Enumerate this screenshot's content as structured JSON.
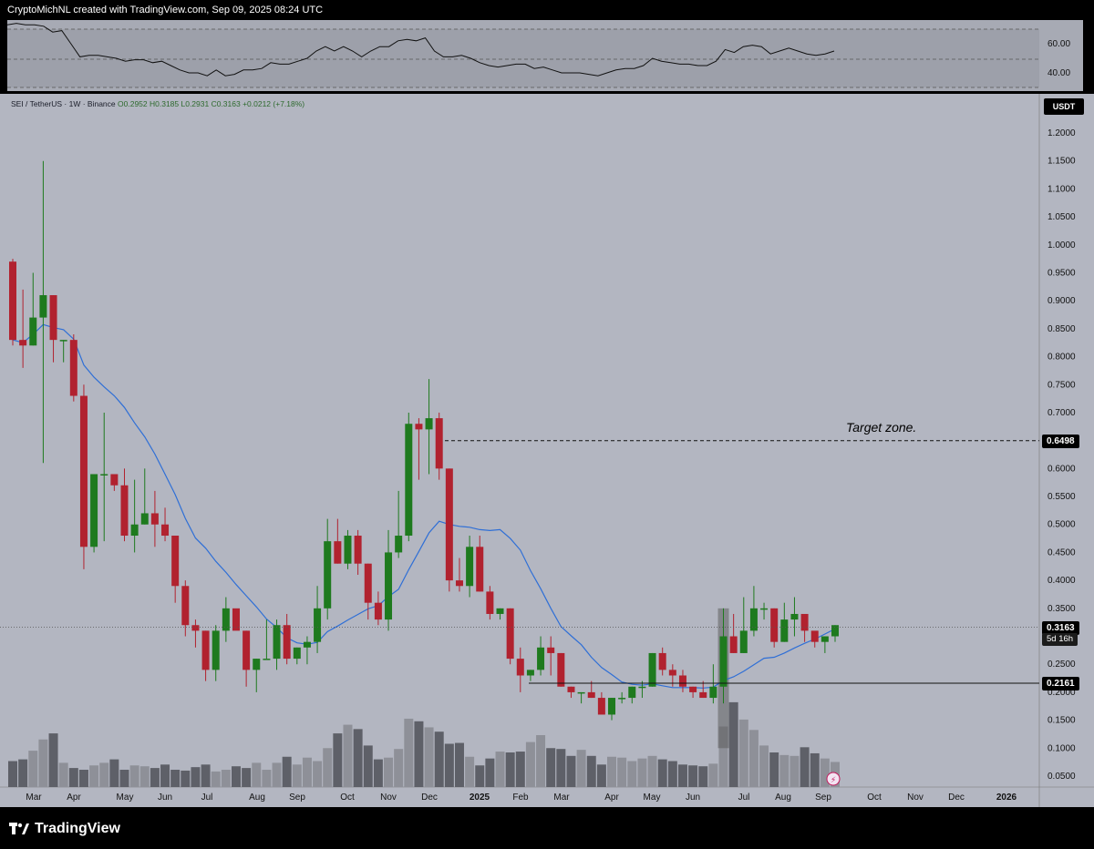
{
  "header": {
    "attribution": "CryptoMichNL created with TradingView.com, Sep 09, 2025 08:24 UTC"
  },
  "legend": {
    "symbol": "SEI / TetherUS · 1W · Binance",
    "ohlc": "O0.2952 H0.3185 L0.2931 C0.3163 +0.0212 (+7.18%)"
  },
  "currency_button": "USDT",
  "annotation": "Target zone.",
  "price_tags": {
    "target": "0.6498",
    "current": "0.3163",
    "support": "0.2161",
    "countdown": "5d 16h"
  },
  "footer": {
    "brand": "TradingView"
  },
  "colors": {
    "background": "#b3b6c1",
    "bull": "#1e7a1e",
    "bear": "#b1222f",
    "ma": "#2f6fd6",
    "rsi_band": "#9b9ea7"
  },
  "chart_data": {
    "type": "candlestick",
    "timeframe": "1W",
    "price_axis": {
      "ticks": [
        "1.2000",
        "1.1500",
        "1.1000",
        "1.0500",
        "1.0000",
        "0.9500",
        "0.9000",
        "0.8500",
        "0.8000",
        "0.7500",
        "0.7000",
        "0.6500",
        "0.6000",
        "0.5500",
        "0.5000",
        "0.4500",
        "0.4000",
        "0.3500",
        "0.3000",
        "0.2500",
        "0.2000",
        "0.1500",
        "0.1000",
        "0.0500"
      ],
      "range": [
        0.03,
        1.22
      ]
    },
    "time_axis": {
      "labels": [
        "Mar",
        "Apr",
        "May",
        "Jun",
        "Jul",
        "Aug",
        "Sep",
        "Oct",
        "Nov",
        "Dec",
        "2025",
        "Feb",
        "Mar",
        "Apr",
        "May",
        "Jun",
        "Jul",
        "Aug",
        "Sep",
        "Oct",
        "Nov",
        "Dec",
        "2026"
      ]
    },
    "rsi": {
      "ticks": [
        "60.00",
        "40.00"
      ],
      "values": [
        73,
        74,
        73,
        73,
        72,
        68,
        69,
        60,
        51,
        52,
        52,
        51,
        50,
        48,
        49,
        49,
        47,
        48,
        45,
        42,
        40,
        40,
        38,
        42,
        38,
        39,
        42,
        42,
        43,
        47,
        46,
        46,
        48,
        50,
        55,
        58,
        55,
        58,
        55,
        51,
        55,
        58,
        58,
        62,
        63,
        62,
        64,
        55,
        51,
        51,
        52,
        50,
        47,
        45,
        44,
        45,
        46,
        46,
        43,
        44,
        42,
        40,
        40,
        40,
        39,
        38,
        40,
        42,
        43,
        43,
        45,
        50,
        48,
        47,
        46,
        46,
        45,
        45,
        48,
        56,
        54,
        58,
        59,
        58,
        53,
        55,
        57,
        55,
        53,
        52,
        53,
        55
      ]
    },
    "candles_ohlc": [
      [
        0.97,
        0.975,
        0.82,
        0.83
      ],
      [
        0.83,
        0.92,
        0.78,
        0.82
      ],
      [
        0.82,
        0.95,
        0.82,
        0.87
      ],
      [
        0.87,
        1.15,
        0.61,
        0.91
      ],
      [
        0.91,
        0.91,
        0.79,
        0.83
      ],
      [
        0.83,
        0.83,
        0.79,
        0.83
      ],
      [
        0.83,
        0.84,
        0.72,
        0.73
      ],
      [
        0.73,
        0.75,
        0.42,
        0.46
      ],
      [
        0.46,
        0.58,
        0.45,
        0.59
      ],
      [
        0.59,
        0.7,
        0.47,
        0.59
      ],
      [
        0.59,
        0.59,
        0.56,
        0.57
      ],
      [
        0.57,
        0.6,
        0.47,
        0.48
      ],
      [
        0.48,
        0.58,
        0.45,
        0.5
      ],
      [
        0.5,
        0.6,
        0.5,
        0.52
      ],
      [
        0.52,
        0.56,
        0.46,
        0.5
      ],
      [
        0.5,
        0.53,
        0.47,
        0.48
      ],
      [
        0.48,
        0.48,
        0.36,
        0.39
      ],
      [
        0.39,
        0.4,
        0.3,
        0.32
      ],
      [
        0.32,
        0.33,
        0.28,
        0.31
      ],
      [
        0.31,
        0.31,
        0.22,
        0.24
      ],
      [
        0.24,
        0.32,
        0.22,
        0.31
      ],
      [
        0.31,
        0.37,
        0.29,
        0.35
      ],
      [
        0.35,
        0.33,
        0.32,
        0.31
      ],
      [
        0.31,
        0.31,
        0.21,
        0.24
      ],
      [
        0.24,
        0.26,
        0.2,
        0.26
      ],
      [
        0.26,
        0.33,
        0.26,
        0.26
      ],
      [
        0.26,
        0.33,
        0.24,
        0.32
      ],
      [
        0.32,
        0.34,
        0.25,
        0.26
      ],
      [
        0.26,
        0.28,
        0.25,
        0.28
      ],
      [
        0.28,
        0.3,
        0.25,
        0.29
      ],
      [
        0.29,
        0.39,
        0.27,
        0.35
      ],
      [
        0.35,
        0.51,
        0.33,
        0.47
      ],
      [
        0.47,
        0.51,
        0.43,
        0.43
      ],
      [
        0.43,
        0.49,
        0.42,
        0.48
      ],
      [
        0.48,
        0.49,
        0.41,
        0.43
      ],
      [
        0.43,
        0.43,
        0.33,
        0.36
      ],
      [
        0.36,
        0.38,
        0.32,
        0.33
      ],
      [
        0.33,
        0.49,
        0.31,
        0.45
      ],
      [
        0.45,
        0.56,
        0.44,
        0.48
      ],
      [
        0.48,
        0.7,
        0.47,
        0.68
      ],
      [
        0.68,
        0.69,
        0.58,
        0.67
      ],
      [
        0.67,
        0.76,
        0.59,
        0.69
      ],
      [
        0.69,
        0.7,
        0.58,
        0.6
      ],
      [
        0.6,
        0.6,
        0.38,
        0.4
      ],
      [
        0.4,
        0.44,
        0.38,
        0.39
      ],
      [
        0.39,
        0.48,
        0.37,
        0.46
      ],
      [
        0.46,
        0.48,
        0.38,
        0.38
      ],
      [
        0.38,
        0.39,
        0.33,
        0.34
      ],
      [
        0.34,
        0.35,
        0.33,
        0.35
      ],
      [
        0.35,
        0.35,
        0.25,
        0.26
      ],
      [
        0.26,
        0.28,
        0.2,
        0.23
      ],
      [
        0.23,
        0.24,
        0.22,
        0.24
      ],
      [
        0.24,
        0.3,
        0.23,
        0.28
      ],
      [
        0.28,
        0.3,
        0.23,
        0.27
      ],
      [
        0.27,
        0.27,
        0.21,
        0.21
      ],
      [
        0.21,
        0.21,
        0.19,
        0.2
      ],
      [
        0.2,
        0.2,
        0.18,
        0.2
      ],
      [
        0.2,
        0.22,
        0.19,
        0.19
      ],
      [
        0.19,
        0.2,
        0.17,
        0.16
      ],
      [
        0.16,
        0.19,
        0.15,
        0.19
      ],
      [
        0.19,
        0.2,
        0.18,
        0.19
      ],
      [
        0.19,
        0.21,
        0.18,
        0.21
      ],
      [
        0.21,
        0.22,
        0.19,
        0.21
      ],
      [
        0.21,
        0.27,
        0.21,
        0.27
      ],
      [
        0.27,
        0.28,
        0.23,
        0.24
      ],
      [
        0.24,
        0.25,
        0.21,
        0.23
      ],
      [
        0.23,
        0.24,
        0.2,
        0.21
      ],
      [
        0.21,
        0.21,
        0.19,
        0.2
      ],
      [
        0.2,
        0.22,
        0.19,
        0.19
      ],
      [
        0.19,
        0.25,
        0.18,
        0.21
      ],
      [
        0.21,
        0.35,
        0.18,
        0.3
      ],
      [
        0.3,
        0.34,
        0.27,
        0.27
      ],
      [
        0.27,
        0.37,
        0.27,
        0.31
      ],
      [
        0.31,
        0.39,
        0.3,
        0.35
      ],
      [
        0.35,
        0.36,
        0.33,
        0.35
      ],
      [
        0.35,
        0.35,
        0.28,
        0.29
      ],
      [
        0.29,
        0.36,
        0.29,
        0.33
      ],
      [
        0.33,
        0.37,
        0.3,
        0.34
      ],
      [
        0.34,
        0.33,
        0.29,
        0.31
      ],
      [
        0.31,
        0.3,
        0.28,
        0.29
      ],
      [
        0.29,
        0.3,
        0.27,
        0.3
      ],
      [
        0.3,
        0.32,
        0.29,
        0.32
      ]
    ],
    "volume_relative": [
      0.3,
      0.32,
      0.42,
      0.55,
      0.62,
      0.28,
      0.22,
      0.2,
      0.25,
      0.28,
      0.32,
      0.2,
      0.25,
      0.24,
      0.22,
      0.26,
      0.2,
      0.19,
      0.23,
      0.26,
      0.18,
      0.2,
      0.24,
      0.22,
      0.28,
      0.2,
      0.28,
      0.35,
      0.26,
      0.34,
      0.3,
      0.45,
      0.62,
      0.72,
      0.67,
      0.48,
      0.32,
      0.34,
      0.44,
      0.79,
      0.76,
      0.69,
      0.64,
      0.5,
      0.51,
      0.35,
      0.25,
      0.33,
      0.41,
      0.4,
      0.41,
      0.52,
      0.6,
      0.45,
      0.44,
      0.36,
      0.43,
      0.36,
      0.26,
      0.35,
      0.34,
      0.3,
      0.33,
      0.36,
      0.32,
      0.3,
      0.26,
      0.25,
      0.24,
      0.27,
      0.7,
      0.98,
      0.78,
      0.66,
      0.48,
      0.4,
      0.37,
      0.36,
      0.46,
      0.39,
      0.33,
      0.29
    ],
    "moving_average_color": "#2f6fd6",
    "levels": {
      "target": 0.6498,
      "current": 0.3163,
      "support": 0.2161
    }
  }
}
